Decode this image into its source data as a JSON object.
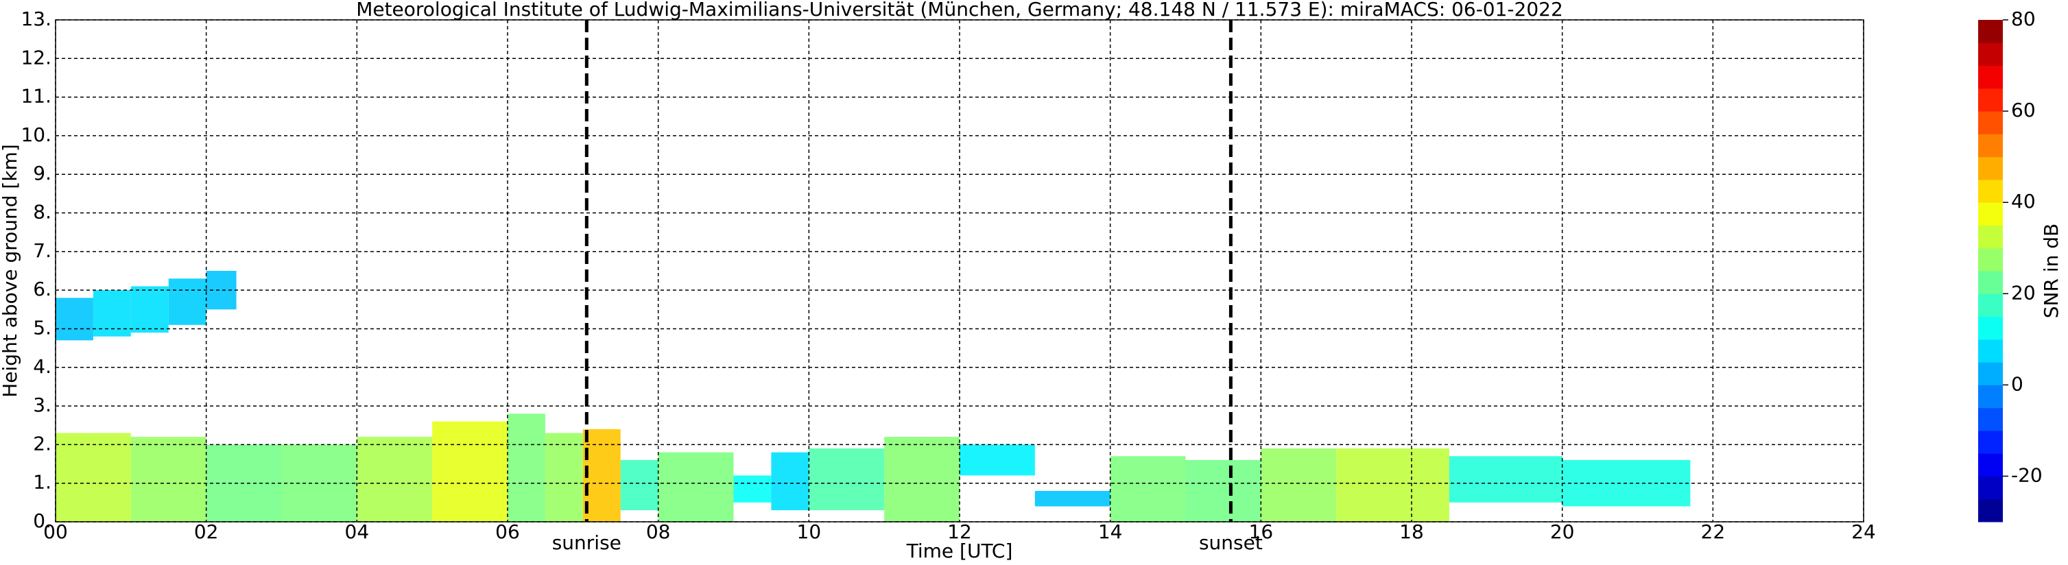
{
  "chart_data": {
    "type": "time-height",
    "title": "Meteorological Institute of Ludwig-Maximilians-Universität (München, Germany; 48.148 N / 11.573 E):    miraMACS: 06-01-2022",
    "x_label": "Time [UTC]",
    "y_label": "Height above ground [km]",
    "colorbar_label": "SNR in dB",
    "xlim": [
      0,
      24
    ],
    "xticks": [
      {
        "value": 0,
        "label": "00"
      },
      {
        "value": 2,
        "label": "02"
      },
      {
        "value": 4,
        "label": "04"
      },
      {
        "value": 6,
        "label": "06"
      },
      {
        "value": 8,
        "label": "08"
      },
      {
        "value": 10,
        "label": "10"
      },
      {
        "value": 12,
        "label": "12"
      },
      {
        "value": 14,
        "label": "14"
      },
      {
        "value": 16,
        "label": "16"
      },
      {
        "value": 18,
        "label": "18"
      },
      {
        "value": 20,
        "label": "20"
      },
      {
        "value": 22,
        "label": "22"
      },
      {
        "value": 24,
        "label": "24"
      }
    ],
    "ylim": [
      0,
      13
    ],
    "yticks": [
      {
        "value": 0,
        "label": "0."
      },
      {
        "value": 1,
        "label": "1."
      },
      {
        "value": 2,
        "label": "2."
      },
      {
        "value": 3,
        "label": "3."
      },
      {
        "value": 4,
        "label": "4."
      },
      {
        "value": 5,
        "label": "5."
      },
      {
        "value": 6,
        "label": "6."
      },
      {
        "value": 7,
        "label": "7."
      },
      {
        "value": 8,
        "label": "8."
      },
      {
        "value": 9,
        "label": "9."
      },
      {
        "value": 10,
        "label": "10."
      },
      {
        "value": 11,
        "label": "11."
      },
      {
        "value": 12,
        "label": "12."
      },
      {
        "value": 13,
        "label": "13."
      }
    ],
    "clim": [
      -30,
      80
    ],
    "cticks": [
      -20,
      0,
      20,
      40,
      60,
      80
    ],
    "grid": true,
    "layers": [
      {
        "bins": [
          0,
          0.5,
          1,
          1.5,
          2,
          2.4
        ],
        "base": [
          4.7,
          4.8,
          4.9,
          5.1,
          5.5
        ],
        "top": [
          5.8,
          6.0,
          6.1,
          6.3,
          6.5
        ],
        "snr": [
          5,
          8,
          8,
          6,
          5
        ]
      },
      {
        "bins": [
          0,
          1,
          2,
          3,
          4,
          5,
          6,
          6.5,
          7,
          7.5,
          8,
          9,
          9.5,
          10,
          11,
          12,
          13,
          14,
          15,
          16,
          17,
          18.5,
          20,
          21.7
        ],
        "base": [
          0,
          0,
          0,
          0,
          0,
          0,
          0,
          0,
          0,
          0.3,
          0,
          0.5,
          0.3,
          0.3,
          0,
          1.2,
          0.4,
          0,
          0,
          0,
          0,
          0.5,
          0.4
        ],
        "top": [
          2.3,
          2.2,
          2.0,
          2.0,
          2.2,
          2.6,
          2.8,
          2.3,
          2.4,
          1.6,
          1.8,
          1.2,
          1.8,
          1.9,
          2.2,
          2.0,
          0.8,
          1.7,
          1.6,
          1.9,
          1.9,
          1.7,
          1.6
        ],
        "snr": [
          32,
          28,
          24,
          25,
          30,
          36,
          25,
          28,
          45,
          18,
          25,
          12,
          8,
          20,
          26,
          10,
          5,
          25,
          24,
          28,
          32,
          15,
          14
        ]
      }
    ],
    "markers": [
      {
        "label": "sunrise",
        "x": 7.05
      },
      {
        "label": "sunset",
        "x": 15.6
      }
    ]
  }
}
